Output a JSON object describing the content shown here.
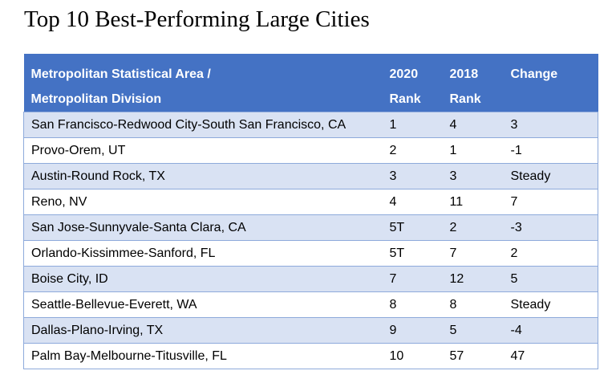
{
  "title": "Top 10 Best-Performing Large Cities",
  "colors": {
    "header_bg": "#4472C4",
    "stripe": "#D9E2F3",
    "border": "#8EAADB"
  },
  "table": {
    "headers": [
      {
        "line1": "Metropolitan Statistical Area /",
        "line2": "Metropolitan Division"
      },
      {
        "line1": "2020",
        "line2": "Rank"
      },
      {
        "line1": "2018",
        "line2": "Rank"
      },
      {
        "line1": "Change",
        "line2": ""
      }
    ],
    "rows": [
      [
        "San Francisco-Redwood City-South San Francisco, CA",
        "1",
        "4",
        "3"
      ],
      [
        "Provo-Orem, UT",
        "2",
        "1",
        "-1"
      ],
      [
        "Austin-Round Rock, TX",
        "3",
        "3",
        "Steady"
      ],
      [
        "Reno, NV",
        "4",
        "11",
        "7"
      ],
      [
        "San Jose-Sunnyvale-Santa Clara, CA",
        "5T",
        "2",
        "-3"
      ],
      [
        "Orlando-Kissimmee-Sanford, FL",
        "5T",
        "7",
        "2"
      ],
      [
        "Boise City, ID",
        "7",
        "12",
        "5"
      ],
      [
        "Seattle-Bellevue-Everett, WA",
        "8",
        "8",
        "Steady"
      ],
      [
        "Dallas-Plano-Irving, TX",
        "9",
        "5",
        "-4"
      ],
      [
        "Palm Bay-Melbourne-Titusville, FL",
        "10",
        "57",
        "47"
      ]
    ]
  }
}
